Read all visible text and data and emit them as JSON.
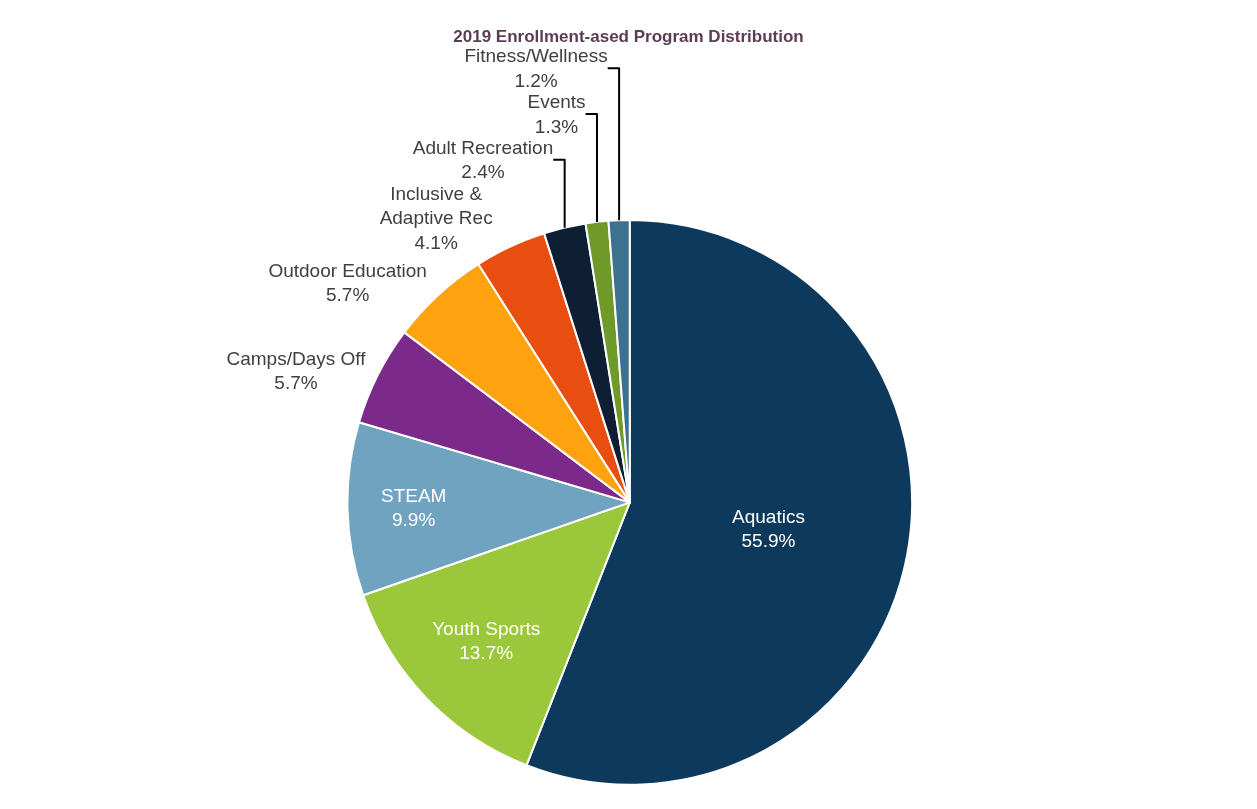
{
  "chart_data": {
    "type": "pie",
    "title": "2019 Enrollment-ased Program Distribution",
    "categories": [
      "Aquatics",
      "Youth Sports",
      "STEAM",
      "Camps/Days Off",
      "Outdoor Education",
      "Inclusive &\nAdaptive Rec",
      "Adult Recreation",
      "Events",
      "Fitness/Wellness"
    ],
    "values": [
      55.9,
      13.7,
      9.9,
      5.7,
      5.7,
      4.1,
      2.4,
      1.3,
      1.2
    ],
    "value_labels": [
      "55.9%",
      "13.7%",
      "9.9%",
      "5.7%",
      "5.7%",
      "4.1%",
      "2.4%",
      "1.3%",
      "1.2%"
    ],
    "colors": [
      "#0d3a5c",
      "#9bc83a",
      "#6fa3c0",
      "#7b2a8a",
      "#ffa20f",
      "#e84e0f",
      "#0e1f33",
      "#6f9a2a",
      "#3d7190"
    ],
    "legend": false
  }
}
